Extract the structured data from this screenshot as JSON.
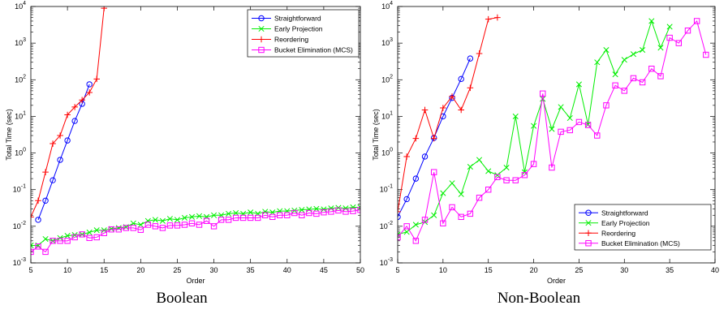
{
  "chart_data": [
    {
      "type": "line",
      "caption": "Boolean",
      "xlabel": "Order",
      "ylabel": "Total Time (sec)",
      "y_scale": "log",
      "xlim": [
        5,
        50
      ],
      "ylim": [
        0.001,
        10000
      ],
      "x_ticks": [
        5,
        10,
        15,
        20,
        25,
        30,
        35,
        40,
        45,
        50
      ],
      "y_ticks": [
        0.001,
        0.01,
        0.1,
        1,
        10,
        100,
        1000,
        10000
      ],
      "y_tick_labels": [
        [
          "10",
          "-3"
        ],
        [
          "10",
          "-2"
        ],
        [
          "10",
          "-1"
        ],
        [
          "10",
          "0"
        ],
        [
          "10",
          "1"
        ],
        [
          "10",
          "2"
        ],
        [
          "10",
          "3"
        ],
        [
          "10",
          "4"
        ]
      ],
      "legend": "top-right",
      "series": [
        {
          "name": "Straightforward",
          "color": "#0000ff",
          "marker": "circle",
          "x": [
            6,
            7,
            8,
            9,
            10,
            11,
            12,
            13
          ],
          "y": [
            0.015,
            0.05,
            0.18,
            0.65,
            2.2,
            7.5,
            22,
            75
          ]
        },
        {
          "name": "Early Projection",
          "color": "#00ee00",
          "marker": "x",
          "x": [
            5,
            6,
            7,
            8,
            9,
            10,
            11,
            12,
            13,
            14,
            15,
            16,
            17,
            18,
            19,
            20,
            21,
            22,
            23,
            24,
            25,
            26,
            27,
            28,
            29,
            30,
            31,
            32,
            33,
            34,
            35,
            36,
            37,
            38,
            39,
            40,
            41,
            42,
            43,
            44,
            45,
            46,
            47,
            48,
            49,
            50
          ],
          "y": [
            0.003,
            0.003,
            0.0045,
            0.004,
            0.0048,
            0.0055,
            0.0058,
            0.006,
            0.0068,
            0.0078,
            0.0078,
            0.0085,
            0.009,
            0.0095,
            0.012,
            0.011,
            0.014,
            0.015,
            0.014,
            0.016,
            0.015,
            0.017,
            0.018,
            0.019,
            0.018,
            0.02,
            0.02,
            0.022,
            0.023,
            0.022,
            0.024,
            0.022,
            0.025,
            0.024,
            0.026,
            0.026,
            0.027,
            0.028,
            0.029,
            0.03,
            0.029,
            0.031,
            0.032,
            0.031,
            0.033,
            0.033
          ]
        },
        {
          "name": "Reordering",
          "color": "#ff0000",
          "marker": "plus",
          "x": [
            5,
            6,
            7,
            8,
            9,
            10,
            11,
            12,
            13,
            14,
            15
          ],
          "y": [
            0.018,
            0.05,
            0.3,
            1.8,
            3.0,
            11,
            18,
            28,
            45,
            105,
            9000
          ]
        },
        {
          "name": "Bucket Elimination (MCS)",
          "color": "#ff00ff",
          "marker": "square",
          "x": [
            5,
            6,
            7,
            8,
            9,
            10,
            11,
            12,
            13,
            14,
            15,
            16,
            17,
            18,
            19,
            20,
            21,
            22,
            23,
            24,
            25,
            26,
            27,
            28,
            29,
            30,
            31,
            32,
            33,
            34,
            35,
            36,
            37,
            38,
            39,
            40,
            41,
            42,
            43,
            44,
            45,
            46,
            47,
            48,
            49,
            50
          ],
          "y": [
            0.002,
            0.0028,
            0.002,
            0.004,
            0.004,
            0.004,
            0.005,
            0.006,
            0.0048,
            0.005,
            0.0065,
            0.0082,
            0.0082,
            0.009,
            0.009,
            0.008,
            0.011,
            0.01,
            0.009,
            0.0105,
            0.0105,
            0.011,
            0.012,
            0.011,
            0.014,
            0.01,
            0.015,
            0.015,
            0.017,
            0.017,
            0.017,
            0.017,
            0.02,
            0.018,
            0.02,
            0.02,
            0.023,
            0.02,
            0.023,
            0.022,
            0.024,
            0.025,
            0.027,
            0.025,
            0.026,
            0.028
          ]
        }
      ]
    },
    {
      "type": "line",
      "caption": "Non-Boolean",
      "xlabel": "Order",
      "ylabel": "Total Time (sec)",
      "y_scale": "log",
      "xlim": [
        5,
        40
      ],
      "ylim": [
        0.001,
        10000
      ],
      "x_ticks": [
        5,
        10,
        15,
        20,
        25,
        30,
        35,
        40
      ],
      "y_ticks": [
        0.001,
        0.01,
        0.1,
        1,
        10,
        100,
        1000,
        10000
      ],
      "y_tick_labels": [
        [
          "10",
          "-3"
        ],
        [
          "10",
          "-2"
        ],
        [
          "10",
          "-1"
        ],
        [
          "10",
          "0"
        ],
        [
          "10",
          "1"
        ],
        [
          "10",
          "2"
        ],
        [
          "10",
          "3"
        ],
        [
          "10",
          "4"
        ]
      ],
      "legend": "bottom-right",
      "series": [
        {
          "name": "Straightforward",
          "color": "#0000ff",
          "marker": "circle",
          "x": [
            5,
            6,
            7,
            8,
            9,
            10,
            11,
            12,
            13
          ],
          "y": [
            0.018,
            0.055,
            0.2,
            0.8,
            2.6,
            10,
            32,
            105,
            380
          ]
        },
        {
          "name": "Early Projection",
          "color": "#00ee00",
          "marker": "x",
          "x": [
            5,
            6,
            7,
            8,
            9,
            10,
            11,
            12,
            13,
            14,
            15,
            16,
            17,
            18,
            19,
            20,
            21,
            22,
            23,
            24,
            25,
            26,
            27,
            28,
            29,
            30,
            31,
            32,
            33,
            34,
            35
          ],
          "y": [
            0.006,
            0.007,
            0.011,
            0.013,
            0.02,
            0.08,
            0.15,
            0.075,
            0.42,
            0.65,
            0.32,
            0.25,
            0.4,
            10,
            0.3,
            5.5,
            30,
            4.5,
            18,
            9,
            75,
            6,
            300,
            650,
            140,
            350,
            500,
            650,
            4000,
            750,
            2800
          ]
        },
        {
          "name": "Reordering",
          "color": "#ff0000",
          "marker": "plus",
          "x": [
            5,
            6,
            7,
            8,
            9,
            10,
            11,
            12,
            13,
            14,
            15,
            16
          ],
          "y": [
            0.025,
            0.8,
            2.5,
            15,
            2.5,
            17,
            35,
            15,
            60,
            520,
            4500,
            5000
          ]
        },
        {
          "name": "Bucket Elimination (MCS)",
          "color": "#ff00ff",
          "marker": "square",
          "x": [
            5,
            6,
            7,
            8,
            9,
            10,
            11,
            12,
            13,
            14,
            15,
            16,
            17,
            18,
            19,
            20,
            21,
            22,
            23,
            24,
            25,
            26,
            27,
            28,
            29,
            30,
            31,
            32,
            33,
            34,
            35,
            36,
            37,
            38,
            39
          ],
          "y": [
            0.005,
            0.01,
            0.004,
            0.015,
            0.3,
            0.012,
            0.033,
            0.018,
            0.022,
            0.06,
            0.1,
            0.22,
            0.18,
            0.18,
            0.25,
            0.5,
            42,
            0.4,
            3.8,
            4.2,
            7,
            5.8,
            3,
            20,
            70,
            50,
            110,
            85,
            200,
            125,
            1400,
            1000,
            2200,
            4000,
            480
          ]
        }
      ]
    }
  ]
}
